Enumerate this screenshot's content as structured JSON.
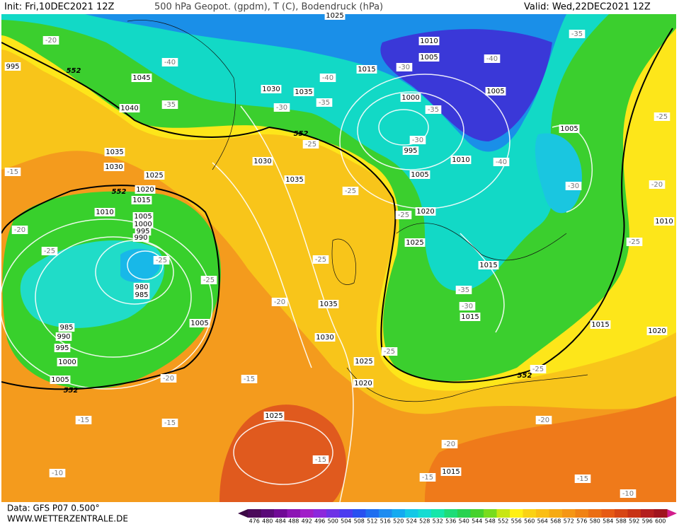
{
  "header": {
    "init": "Init: Fri,10DEC2021 12Z",
    "title": "500 hPa Geopot. (gpdm), T (C), Bodendruck (hPa)",
    "valid": "Valid: Wed,22DEC2021 12Z"
  },
  "footer": {
    "data": "Data: GFS P07 0.500°",
    "site": "WWW.WETTERZENTRALE.DE"
  },
  "colorbar": {
    "ticks": [
      476,
      480,
      484,
      488,
      492,
      496,
      500,
      504,
      508,
      512,
      516,
      520,
      524,
      528,
      532,
      536,
      540,
      544,
      548,
      552,
      556,
      560,
      564,
      568,
      572,
      576,
      580,
      584,
      588,
      592,
      596,
      600
    ]
  },
  "map": {
    "isobar_labels": [
      "1025",
      "1010",
      "1005",
      "1015",
      "1005",
      "1000",
      "995",
      "1010",
      "1005",
      "1020",
      "1025",
      "1015",
      "1015",
      "1015",
      "1020",
      "1005",
      "1010",
      "1045",
      "1040",
      "1030",
      "1035",
      "1035",
      "1030",
      "1025",
      "1020",
      "1015",
      "1010",
      "1005",
      "1000",
      "995",
      "990",
      "980",
      "985",
      "985",
      "990",
      "995",
      "1000",
      "1005",
      "1005",
      "1030",
      "1035",
      "1035",
      "1030",
      "1025",
      "1020",
      "1025",
      "1015",
      "995"
    ],
    "temperature_labels": [
      "-20",
      "-40",
      "-35",
      "-30",
      "-35",
      "-40",
      "-35",
      "-40",
      "-30",
      "-35",
      "-30",
      "-40",
      "-30",
      "-25",
      "-25",
      "-25",
      "-25",
      "-25",
      "-25",
      "-25",
      "-25",
      "-20",
      "-15",
      "-20",
      "-30",
      "-35",
      "-25",
      "-25",
      "-20",
      "-15",
      "-15",
      "-15",
      "-15",
      "-20",
      "-20",
      "-15",
      "-15",
      "-10",
      "-10",
      "-20",
      "-25"
    ],
    "height_labels": [
      "552",
      "552",
      "552",
      "552",
      "552"
    ]
  }
}
